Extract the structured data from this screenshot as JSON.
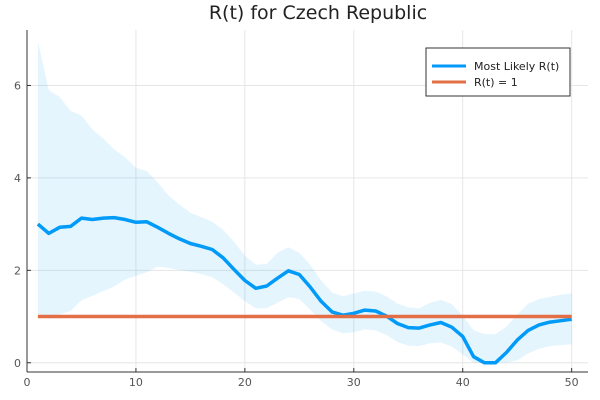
{
  "chart_data": {
    "type": "line",
    "title": "R(t) for Czech Republic",
    "xlabel": "",
    "ylabel": "",
    "xlim": [
      0,
      51.5
    ],
    "ylim": [
      -0.2,
      7.2
    ],
    "x_ticks": [
      0,
      10,
      20,
      30,
      40,
      50
    ],
    "y_ticks": [
      0,
      2,
      4,
      6
    ],
    "grid": true,
    "legend_position": "top-right",
    "series": [
      {
        "name": "Most Likely R(t)",
        "color": "#009af9",
        "x": [
          1,
          2,
          3,
          4,
          5,
          6,
          7,
          8,
          9,
          10,
          11,
          12,
          13,
          14,
          15,
          16,
          17,
          18,
          19,
          20,
          21,
          22,
          23,
          24,
          25,
          26,
          27,
          28,
          29,
          30,
          31,
          32,
          33,
          34,
          35,
          36,
          37,
          38,
          39,
          40,
          41,
          42,
          43,
          44,
          45,
          46,
          47,
          48,
          49,
          50
        ],
        "values": [
          3.0,
          2.8,
          2.93,
          2.95,
          3.13,
          3.1,
          3.13,
          3.14,
          3.1,
          3.04,
          3.05,
          2.93,
          2.8,
          2.68,
          2.58,
          2.52,
          2.45,
          2.27,
          2.02,
          1.78,
          1.61,
          1.66,
          1.83,
          1.99,
          1.91,
          1.64,
          1.33,
          1.1,
          1.03,
          1.07,
          1.14,
          1.12,
          1.01,
          0.85,
          0.76,
          0.75,
          0.82,
          0.87,
          0.77,
          0.57,
          0.13,
          0.0,
          0.0,
          0.22,
          0.49,
          0.7,
          0.82,
          0.88,
          0.91,
          0.94
        ]
      },
      {
        "name": "R(t) = 1",
        "color": "#e26f46",
        "x": [
          1,
          50
        ],
        "values": [
          1,
          1
        ]
      }
    ],
    "confidence_band": {
      "color": "#009af9",
      "x": [
        1,
        2,
        3,
        4,
        5,
        6,
        7,
        8,
        9,
        10,
        11,
        12,
        13,
        14,
        15,
        16,
        17,
        18,
        19,
        20,
        21,
        22,
        23,
        24,
        25,
        26,
        27,
        28,
        29,
        30,
        31,
        32,
        33,
        34,
        35,
        36,
        37,
        38,
        39,
        40,
        41,
        42,
        43,
        44,
        45,
        46,
        47,
        48,
        49,
        50
      ],
      "lower": [
        1.05,
        0.95,
        1.05,
        1.12,
        1.35,
        1.45,
        1.55,
        1.65,
        1.8,
        1.88,
        1.96,
        2.08,
        2.05,
        2.0,
        1.97,
        1.92,
        1.85,
        1.7,
        1.52,
        1.33,
        1.18,
        1.18,
        1.3,
        1.42,
        1.38,
        1.15,
        0.9,
        0.72,
        0.64,
        0.66,
        0.72,
        0.7,
        0.6,
        0.45,
        0.37,
        0.36,
        0.42,
        0.44,
        0.35,
        0.18,
        0.0,
        0.0,
        0.0,
        0.0,
        0.05,
        0.2,
        0.3,
        0.36,
        0.38,
        0.4
      ],
      "upper": [
        6.95,
        5.9,
        5.75,
        5.45,
        5.35,
        5.05,
        4.85,
        4.62,
        4.45,
        4.22,
        4.15,
        3.9,
        3.62,
        3.42,
        3.25,
        3.15,
        3.05,
        2.88,
        2.62,
        2.32,
        2.12,
        2.14,
        2.38,
        2.5,
        2.38,
        2.12,
        1.78,
        1.52,
        1.44,
        1.5,
        1.56,
        1.54,
        1.44,
        1.28,
        1.2,
        1.18,
        1.3,
        1.36,
        1.27,
        1.02,
        0.7,
        0.62,
        0.62,
        0.78,
        1.04,
        1.28,
        1.38,
        1.43,
        1.47,
        1.5
      ]
    }
  }
}
